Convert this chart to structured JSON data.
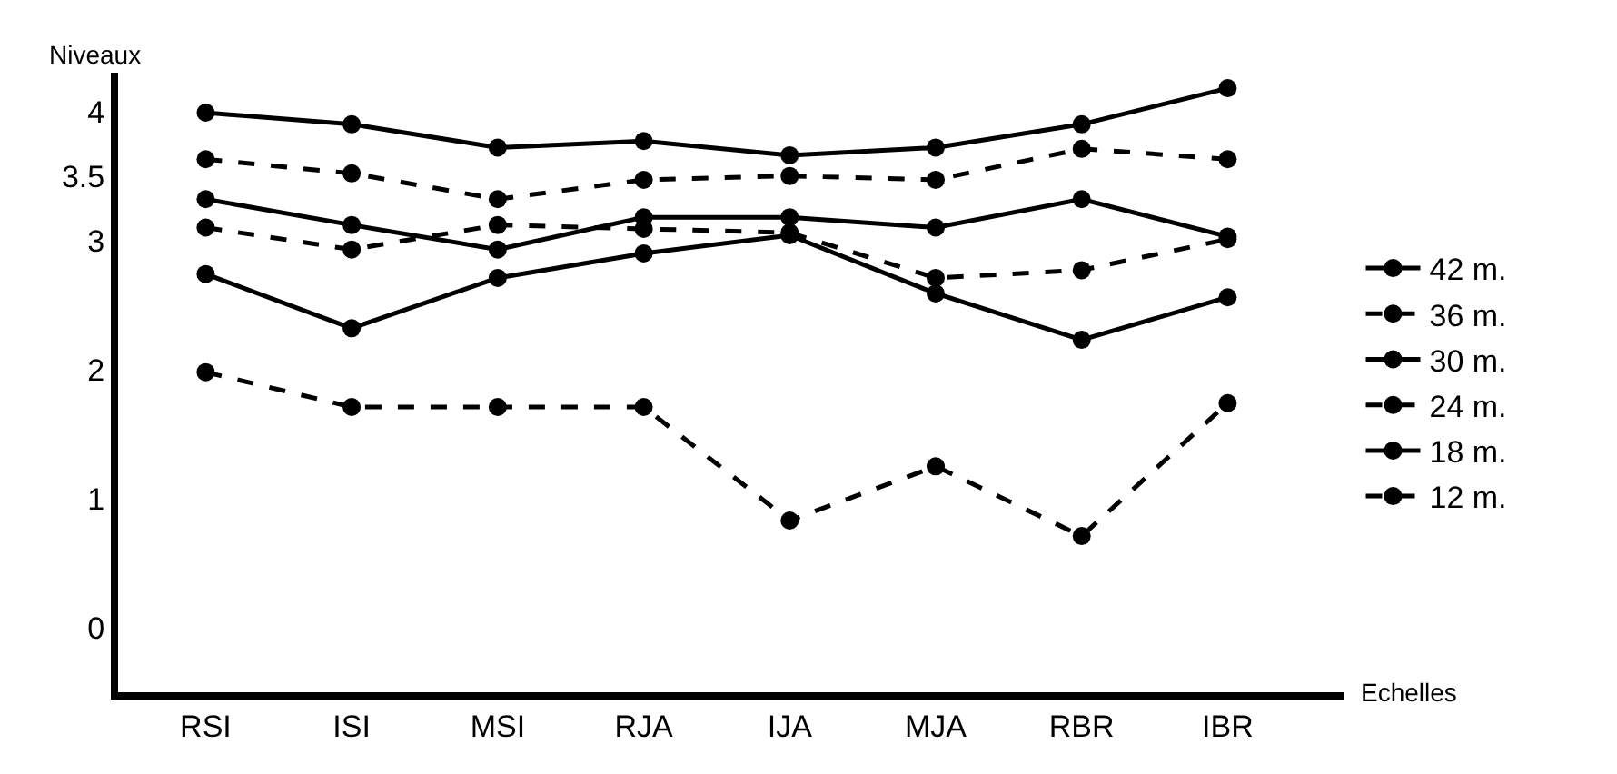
{
  "chart_data": {
    "type": "line",
    "ylabel": "Niveaux",
    "xlabel": "Echelles",
    "categories": [
      "RSI",
      "ISI",
      "MSI",
      "RJA",
      "IJA",
      "MJA",
      "RBR",
      "IBR"
    ],
    "ylim": [
      -0.5,
      4.3
    ],
    "yticks": [
      0,
      1,
      2,
      3,
      3.5,
      4
    ],
    "grid": false,
    "legend": "right",
    "marker": "circle",
    "series": [
      {
        "name": "42 m.",
        "color": "#000000",
        "line_style": "solid",
        "values": [
          3.99,
          3.9,
          3.72,
          3.77,
          3.66,
          3.72,
          3.9,
          4.18
        ]
      },
      {
        "name": "36 m.",
        "color": "#000000",
        "line_style": "dashed",
        "values": [
          3.63,
          3.52,
          3.32,
          3.47,
          3.5,
          3.47,
          3.71,
          3.63
        ]
      },
      {
        "name": "30 m.",
        "color": "#000000",
        "line_style": "solid",
        "values": [
          3.32,
          3.12,
          2.93,
          3.18,
          3.18,
          3.1,
          3.32,
          3.03
        ]
      },
      {
        "name": "24 m.",
        "color": "#000000",
        "line_style": "dashed",
        "values": [
          3.1,
          2.93,
          3.12,
          3.09,
          3.06,
          2.71,
          2.77,
          3.01
        ]
      },
      {
        "name": "18 m.",
        "color": "#000000",
        "line_style": "solid",
        "values": [
          2.74,
          2.32,
          2.71,
          2.9,
          3.04,
          2.59,
          2.23,
          2.56
        ]
      },
      {
        "name": "12 m.",
        "color": "#000000",
        "line_style": "dashed",
        "values": [
          1.98,
          1.71,
          1.71,
          1.71,
          0.83,
          1.25,
          0.71,
          1.74
        ]
      }
    ]
  }
}
